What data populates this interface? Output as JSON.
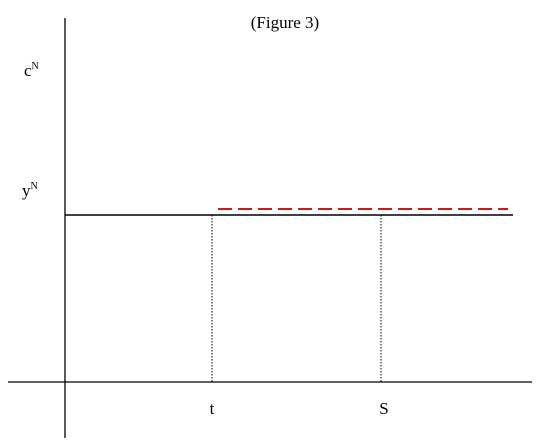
{
  "title": "(Figure 3)",
  "y_labels": [
    {
      "label": "c",
      "sup": "N"
    },
    {
      "label": "y",
      "sup": "N"
    }
  ],
  "x_labels": [
    "t",
    "S"
  ]
}
